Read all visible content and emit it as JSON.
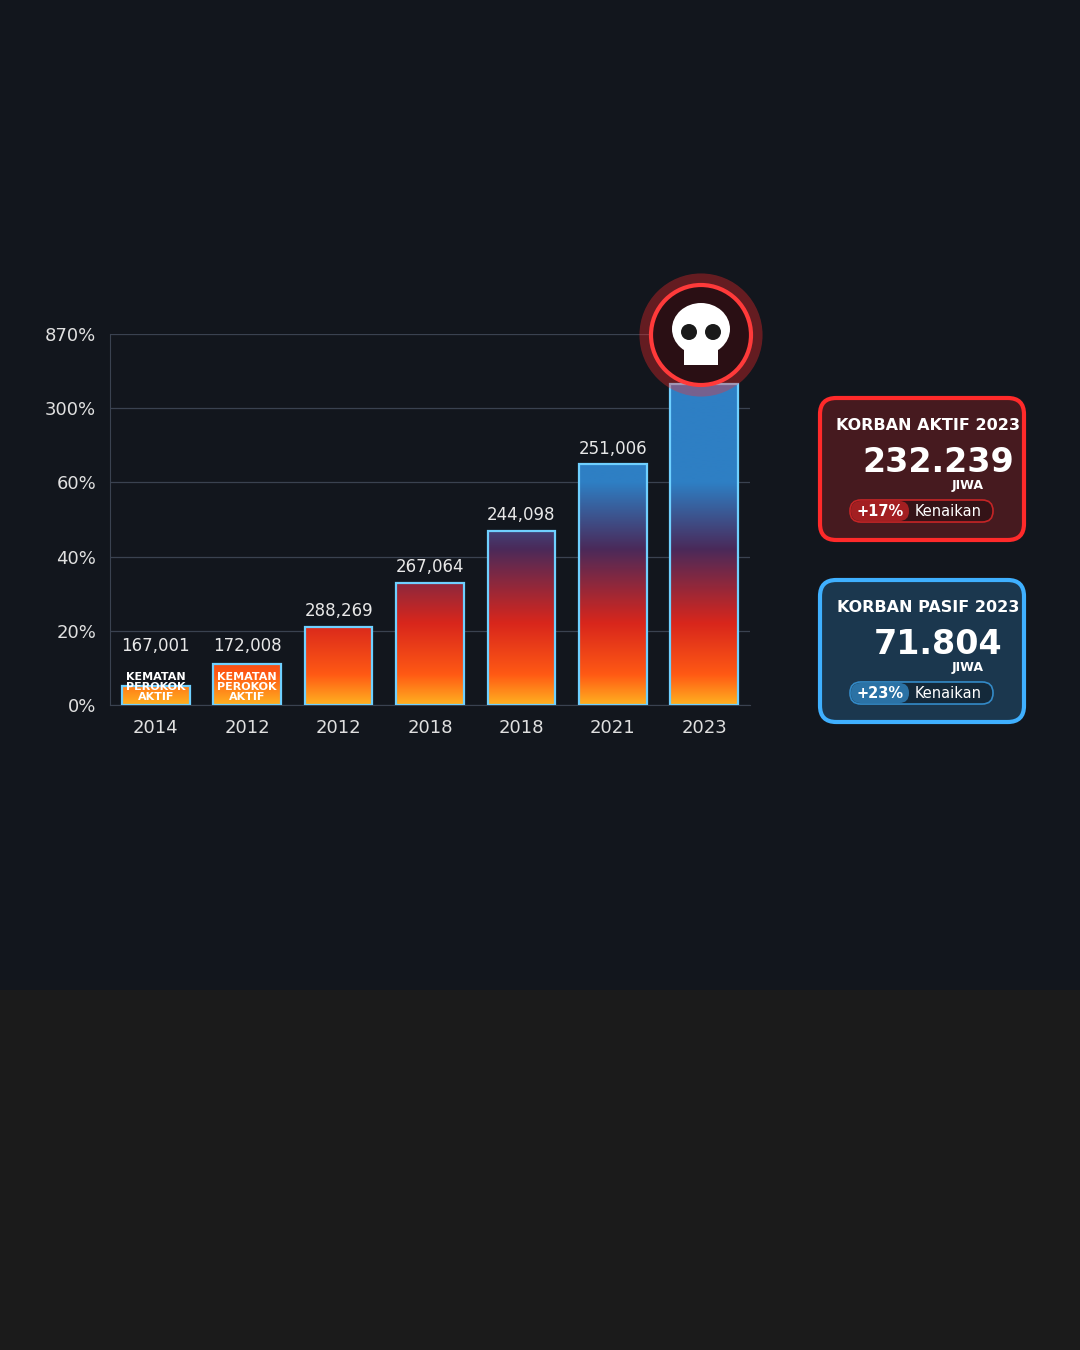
{
  "chart_data": {
    "type": "bar",
    "categories": [
      "2014",
      "2012",
      "2012",
      "2018",
      "2018",
      "2021",
      "2023"
    ],
    "values": [
      5,
      11,
      21,
      33,
      47,
      118,
      485
    ],
    "color": "#2e7fc4",
    "ylim": [
      0,
      870
    ],
    "yticks": [
      {
        "value": 0,
        "label": "0%"
      },
      {
        "value": 20,
        "label": "20%"
      },
      {
        "value": 40,
        "label": "40%"
      },
      {
        "value": 60,
        "label": "60%"
      },
      {
        "value": 300,
        "label": "300%"
      },
      {
        "value": 870,
        "label": "870%"
      }
    ],
    "grid": true,
    "value_annotations": [
      {
        "index": 0,
        "text": "167,001"
      },
      {
        "index": 1,
        "text": "172,008"
      },
      {
        "index": 2,
        "text": "288,269"
      },
      {
        "index": 3,
        "text": "267,064"
      },
      {
        "index": 4,
        "text": "244,098"
      },
      {
        "index": 5,
        "text": "251,006"
      }
    ],
    "inner_annotations": [
      {
        "index": 0,
        "text": "KEMATAN\nPEROKOK\nAKTIF"
      },
      {
        "index": 1,
        "text": "KEMATAN\nPEROKOK\nAKTIF"
      }
    ],
    "panels": [
      {
        "title": "KORBAN AKTIF 2023",
        "value": "232.239",
        "unit": "JIWA",
        "change": "+17%",
        "change_label": "Kenaikan",
        "color": "#ff2a2a"
      },
      {
        "title": "KORBAN PASIF 2023",
        "value": "71.804",
        "unit": "JIWA",
        "change": "+23%",
        "change_label": "Kenaikan",
        "color": "#3fb0ff"
      }
    ]
  }
}
